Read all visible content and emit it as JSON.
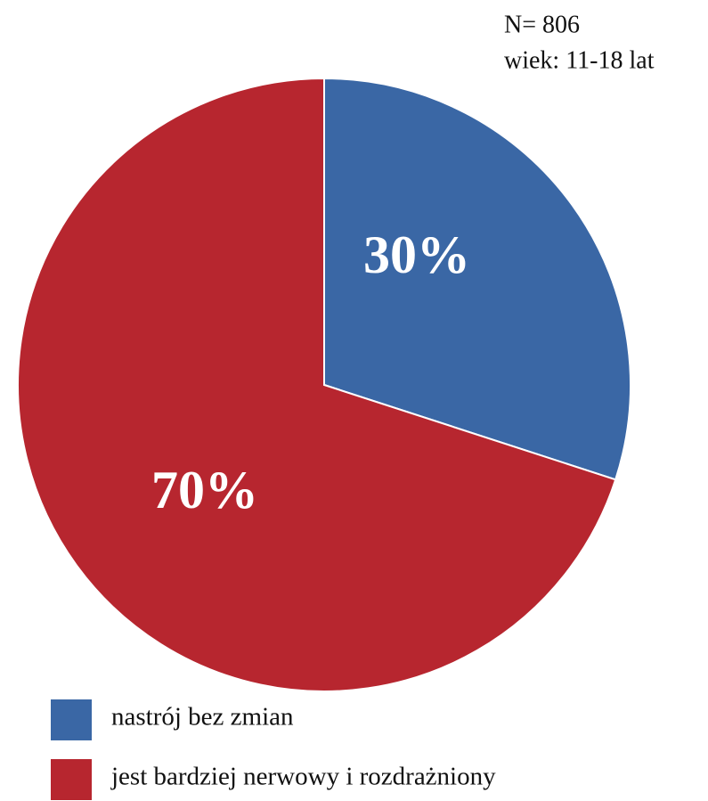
{
  "chart_data": {
    "type": "pie",
    "annotations": [
      "N= 806",
      "wiek: 11-18 lat"
    ],
    "categories": [
      "nastrój bez zmian",
      "jest bardziej nerwowy i rozdrażniony"
    ],
    "values": [
      30,
      70
    ],
    "value_labels": [
      "30%",
      "70%"
    ],
    "colors": [
      "#3a67a5",
      "#b7262f"
    ]
  }
}
